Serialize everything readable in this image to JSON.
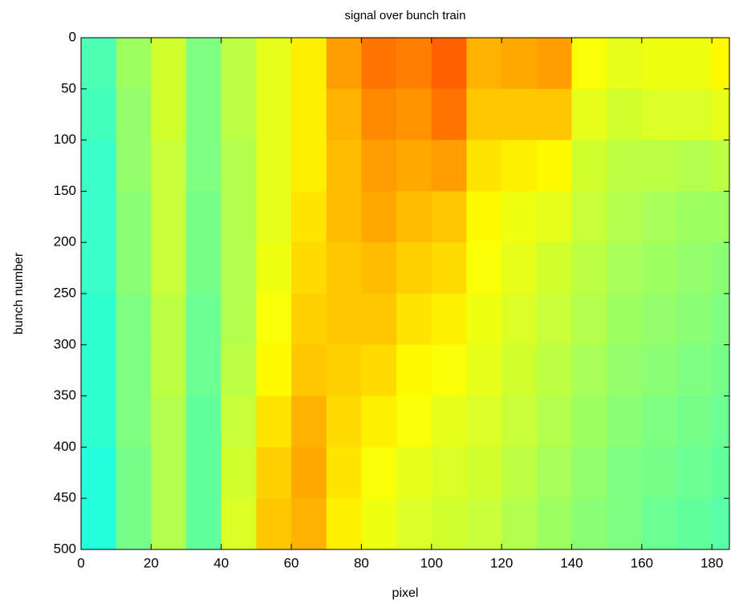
{
  "chart_data": {
    "type": "heatmap",
    "title": "signal over bunch train",
    "xlabel": "pixel",
    "ylabel": "bunch number",
    "xbins": [
      0,
      10,
      20,
      30,
      40,
      50,
      60,
      70,
      80,
      90,
      100,
      110,
      120,
      130,
      140,
      150,
      160,
      170,
      180,
      185
    ],
    "ybins": [
      0,
      50,
      100,
      150,
      200,
      250,
      300,
      350,
      400,
      450,
      500
    ],
    "values": [
      [
        0.45,
        0.53,
        0.58,
        0.5,
        0.56,
        0.6,
        0.64,
        0.72,
        0.76,
        0.75,
        0.78,
        0.7,
        0.71,
        0.72,
        0.62,
        0.6,
        0.61,
        0.61,
        0.63
      ],
      [
        0.44,
        0.52,
        0.58,
        0.5,
        0.56,
        0.6,
        0.64,
        0.7,
        0.74,
        0.73,
        0.76,
        0.68,
        0.68,
        0.68,
        0.6,
        0.58,
        0.59,
        0.59,
        0.6
      ],
      [
        0.43,
        0.52,
        0.57,
        0.5,
        0.55,
        0.6,
        0.64,
        0.69,
        0.72,
        0.71,
        0.72,
        0.65,
        0.64,
        0.63,
        0.58,
        0.56,
        0.56,
        0.55,
        0.56
      ],
      [
        0.43,
        0.51,
        0.57,
        0.49,
        0.55,
        0.6,
        0.65,
        0.69,
        0.71,
        0.69,
        0.68,
        0.63,
        0.61,
        0.6,
        0.57,
        0.55,
        0.54,
        0.53,
        0.53
      ],
      [
        0.43,
        0.51,
        0.57,
        0.49,
        0.55,
        0.61,
        0.66,
        0.68,
        0.69,
        0.67,
        0.66,
        0.62,
        0.6,
        0.58,
        0.56,
        0.54,
        0.53,
        0.52,
        0.51
      ],
      [
        0.42,
        0.5,
        0.56,
        0.48,
        0.55,
        0.62,
        0.67,
        0.68,
        0.68,
        0.65,
        0.64,
        0.61,
        0.59,
        0.57,
        0.55,
        0.53,
        0.52,
        0.51,
        0.5
      ],
      [
        0.42,
        0.5,
        0.56,
        0.48,
        0.56,
        0.63,
        0.68,
        0.67,
        0.66,
        0.63,
        0.62,
        0.6,
        0.58,
        0.56,
        0.54,
        0.52,
        0.51,
        0.5,
        0.49
      ],
      [
        0.42,
        0.5,
        0.55,
        0.47,
        0.57,
        0.65,
        0.7,
        0.66,
        0.64,
        0.62,
        0.6,
        0.59,
        0.57,
        0.55,
        0.53,
        0.51,
        0.5,
        0.49,
        0.48
      ],
      [
        0.41,
        0.49,
        0.55,
        0.47,
        0.58,
        0.67,
        0.71,
        0.65,
        0.62,
        0.6,
        0.59,
        0.58,
        0.56,
        0.54,
        0.52,
        0.5,
        0.49,
        0.48,
        0.47
      ],
      [
        0.41,
        0.49,
        0.55,
        0.47,
        0.59,
        0.68,
        0.7,
        0.64,
        0.61,
        0.59,
        0.58,
        0.57,
        0.55,
        0.53,
        0.51,
        0.5,
        0.48,
        0.47,
        0.46
      ]
    ],
    "colormap": "jet",
    "clim": [
      0,
      1
    ],
    "xlim": [
      0,
      185
    ],
    "xticks": [
      0,
      20,
      40,
      60,
      80,
      100,
      120,
      140,
      160,
      180
    ],
    "ylim": [
      0,
      500
    ],
    "yticks": [
      0,
      50,
      100,
      150,
      200,
      250,
      300,
      350,
      400,
      450,
      500
    ],
    "y_reversed": true
  }
}
